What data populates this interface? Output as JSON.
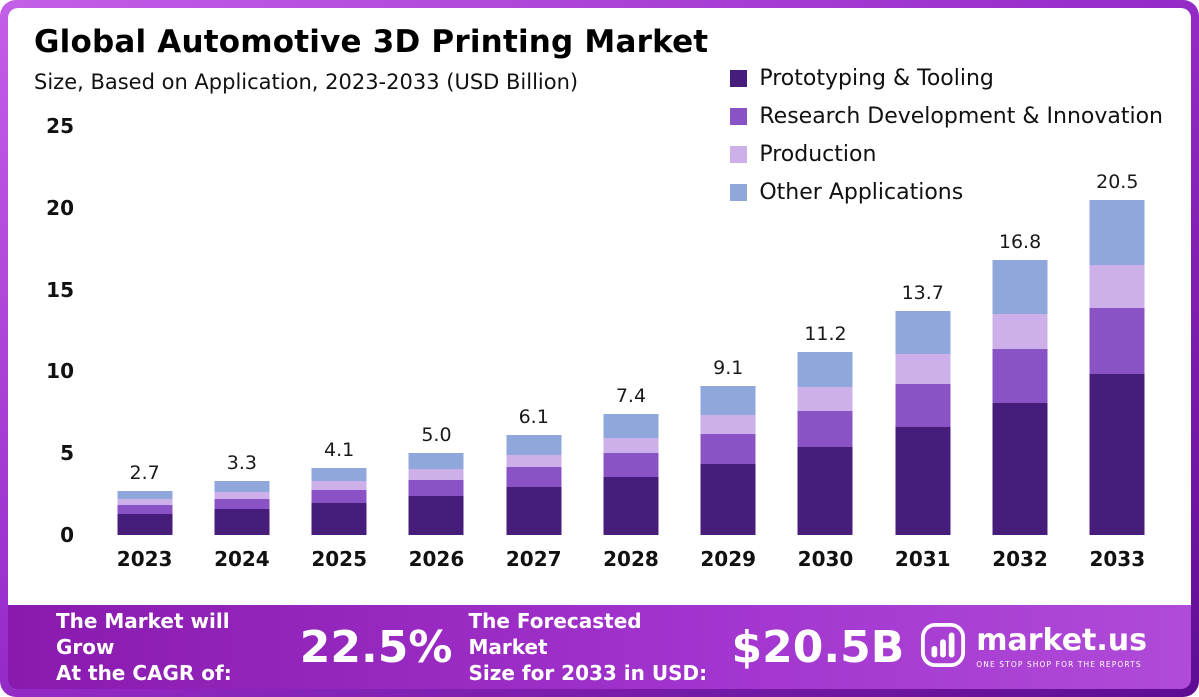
{
  "header": {
    "title": "Global Automotive 3D Printing Market",
    "subtitle": "Size, Based on Application, 2023-2033 (USD Billion)"
  },
  "chart_data": {
    "type": "bar",
    "stacked": true,
    "title": "Global Automotive 3D Printing Market",
    "subtitle": "Size, Based on Application, 2023-2033 (USD Billion)",
    "xlabel": "",
    "ylabel": "USD Billion",
    "ylim": [
      0,
      25
    ],
    "yticks": [
      0,
      5,
      10,
      15,
      20,
      25
    ],
    "grid": false,
    "legend_position": "top-right",
    "categories": [
      "2023",
      "2024",
      "2025",
      "2026",
      "2027",
      "2028",
      "2029",
      "2030",
      "2031",
      "2032",
      "2033"
    ],
    "totals": [
      "2.7",
      "3.3",
      "4.1",
      "5.0",
      "6.1",
      "7.4",
      "9.1",
      "11.2",
      "13.7",
      "16.8",
      "20.5"
    ],
    "series": [
      {
        "name": "Prototyping & Tooling",
        "color": "#471d7c",
        "values": [
          1.3,
          1.58,
          1.97,
          2.4,
          2.93,
          3.55,
          4.37,
          5.38,
          6.58,
          8.06,
          9.84
        ]
      },
      {
        "name": "Research Development & Innovation",
        "color": "#8a53c5",
        "values": [
          0.53,
          0.65,
          0.8,
          0.98,
          1.2,
          1.45,
          1.78,
          2.19,
          2.68,
          3.29,
          4.02
        ]
      },
      {
        "name": "Production",
        "color": "#cdafe9",
        "values": [
          0.35,
          0.43,
          0.53,
          0.65,
          0.79,
          0.96,
          1.18,
          1.46,
          1.78,
          2.18,
          2.66
        ]
      },
      {
        "name": "Other Applications",
        "color": "#8fa7da",
        "values": [
          0.52,
          0.64,
          0.8,
          0.97,
          1.18,
          1.44,
          1.77,
          2.17,
          2.66,
          3.27,
          3.98
        ]
      }
    ]
  },
  "banner": {
    "cagr_label_line1": "The Market will Grow",
    "cagr_label_line2": "At the CAGR of:",
    "cagr_value": "22.5%",
    "forecast_label_line1": "The Forecasted Market",
    "forecast_label_line2": "Size for 2033 in USD:",
    "forecast_value": "$20.5B",
    "logo_icon": "marketus-logo-icon",
    "logo_text": "market.us",
    "logo_tagline": "ONE STOP SHOP FOR THE REPORTS"
  }
}
